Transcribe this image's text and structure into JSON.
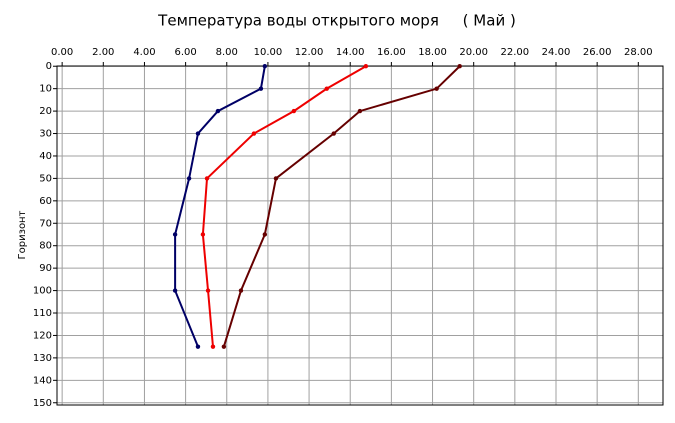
{
  "chart_data": {
    "type": "line",
    "title": "Температура воды открытого моря     ( Май )",
    "y_label": "Горизонт",
    "y": [
      0,
      10,
      20,
      30,
      50,
      75,
      100,
      125
    ],
    "series": [
      {
        "color": "#000066",
        "values": [
          9.85,
          9.66,
          7.57,
          6.6,
          6.17,
          5.49,
          5.49,
          6.6
        ]
      },
      {
        "color": "#ee0000",
        "values": [
          14.76,
          12.86,
          11.26,
          9.32,
          7.04,
          6.84,
          7.09,
          7.33
        ]
      },
      {
        "color": "#660000",
        "values": [
          19.32,
          18.2,
          14.47,
          13.2,
          10.39,
          9.85,
          8.69,
          7.86
        ]
      }
    ],
    "xlim": [
      -0.25,
      29.2
    ],
    "xticks": [
      {
        "value": 0,
        "label": "0.00"
      },
      {
        "value": 2,
        "label": "2.00"
      },
      {
        "value": 4,
        "label": "4.00"
      },
      {
        "value": 6,
        "label": "6.00"
      },
      {
        "value": 8,
        "label": "8.00"
      },
      {
        "value": 10,
        "label": "10.00"
      },
      {
        "value": 12,
        "label": "12.00"
      },
      {
        "value": 14,
        "label": "14.00"
      },
      {
        "value": 16,
        "label": "16.00"
      },
      {
        "value": 18,
        "label": "18.00"
      },
      {
        "value": 20,
        "label": "20.00"
      },
      {
        "value": 22,
        "label": "22.00"
      },
      {
        "value": 24,
        "label": "24.00"
      },
      {
        "value": 26,
        "label": "26.00"
      },
      {
        "value": 28,
        "label": "28.00"
      }
    ],
    "ylim": [
      -0.1,
      151
    ],
    "y_reversed": true,
    "yticks": [
      0,
      10,
      20,
      30,
      40,
      50,
      60,
      70,
      80,
      90,
      100,
      110,
      120,
      130,
      140,
      150
    ],
    "grid": true
  }
}
